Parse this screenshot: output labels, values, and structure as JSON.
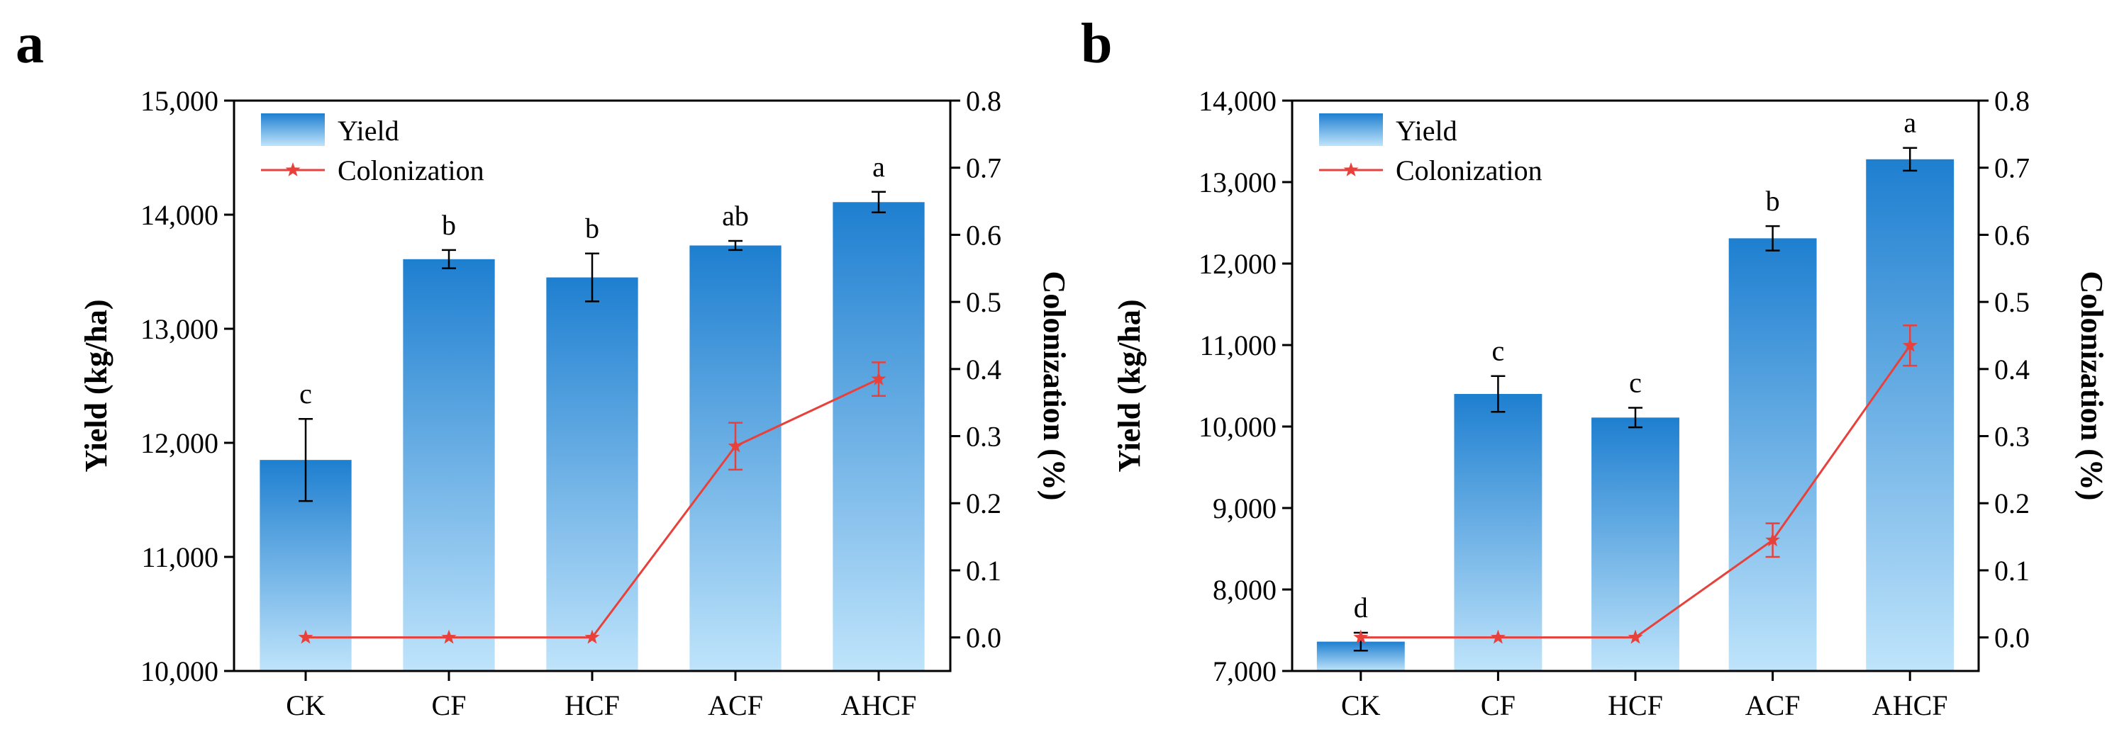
{
  "panels": [
    {
      "letter": "a",
      "chart_data": {
        "type": "bar",
        "categories": [
          "CK",
          "CF",
          "HCF",
          "ACF",
          "AHCF"
        ],
        "series": [
          {
            "name": "Yield",
            "kind": "bar",
            "axis": "left",
            "values": [
              11850,
              13610,
              13450,
              13730,
              14110
            ],
            "errors": [
              360,
              80,
              210,
              40,
              90
            ],
            "labels": [
              "c",
              "b",
              "b",
              "ab",
              "a"
            ]
          },
          {
            "name": "Colonization",
            "kind": "line",
            "axis": "right",
            "values": [
              0.0,
              0.0,
              0.0,
              0.285,
              0.385
            ],
            "errors": [
              0,
              0,
              0,
              0.035,
              0.025
            ]
          }
        ],
        "ylabel": "Yield (kg/ha)",
        "y2label": "Colonization (%)",
        "ylim": [
          10000,
          15000
        ],
        "y2lim": [
          -0.05,
          0.8
        ],
        "yticks": [
          "10,000",
          "11,000",
          "12,000",
          "13,000",
          "14,000",
          "15,000"
        ],
        "ytick_values": [
          10000,
          11000,
          12000,
          13000,
          14000,
          15000
        ],
        "y2ticks": [
          "0.0",
          "0.1",
          "0.2",
          "0.3",
          "0.4",
          "0.5",
          "0.6",
          "0.7",
          "0.8"
        ],
        "y2tick_values": [
          0,
          0.1,
          0.2,
          0.3,
          0.4,
          0.5,
          0.6,
          0.7,
          0.8
        ],
        "legend": [
          "Yield",
          "Colonization"
        ],
        "legend_position": "top-left",
        "grid": false
      }
    },
    {
      "letter": "b",
      "chart_data": {
        "type": "bar",
        "categories": [
          "CK",
          "CF",
          "HCF",
          "ACF",
          "AHCF"
        ],
        "series": [
          {
            "name": "Yield",
            "kind": "bar",
            "axis": "left",
            "values": [
              7360,
              10400,
              10110,
              12310,
              13280
            ],
            "errors": [
              110,
              220,
              120,
              150,
              140
            ],
            "labels": [
              "d",
              "c",
              "c",
              "b",
              "a"
            ]
          },
          {
            "name": "Colonization",
            "kind": "line",
            "axis": "right",
            "values": [
              0.0,
              0.0,
              0.0,
              0.145,
              0.435
            ],
            "errors": [
              0,
              0,
              0,
              0.025,
              0.03
            ]
          }
        ],
        "ylabel": "Yield (kg/ha)",
        "y2label": "Colonization (%)",
        "ylim": [
          7000,
          14000
        ],
        "y2lim": [
          -0.05,
          0.8
        ],
        "yticks": [
          "7,000",
          "8,000",
          "9,000",
          "10,000",
          "11,000",
          "12,000",
          "13,000",
          "14,000"
        ],
        "ytick_values": [
          7000,
          8000,
          9000,
          10000,
          11000,
          12000,
          13000,
          14000
        ],
        "y2ticks": [
          "0.0",
          "0.1",
          "0.2",
          "0.3",
          "0.4",
          "0.5",
          "0.6",
          "0.7",
          "0.8"
        ],
        "y2tick_values": [
          0,
          0.1,
          0.2,
          0.3,
          0.4,
          0.5,
          0.6,
          0.7,
          0.8
        ],
        "legend": [
          "Yield",
          "Colonization"
        ],
        "legend_position": "top-left",
        "grid": false
      }
    }
  ],
  "colors": {
    "bar_top": "#1e7fd0",
    "bar_bottom": "#bfe4fb",
    "line": "#e8413c",
    "axis": "#000000"
  }
}
